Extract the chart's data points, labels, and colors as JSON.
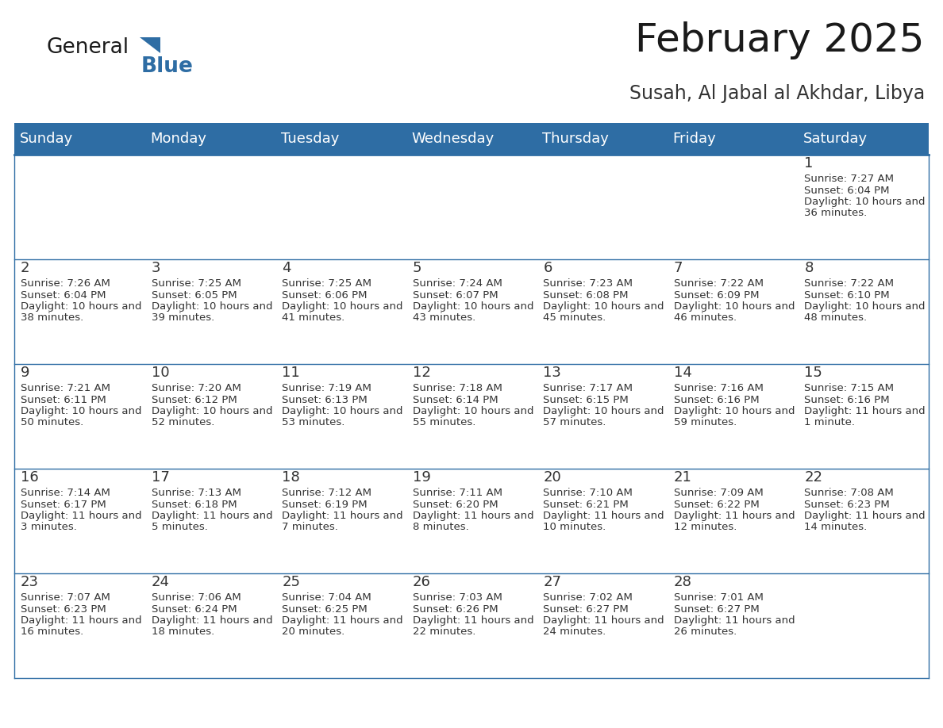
{
  "title": "February 2025",
  "subtitle": "Susah, Al Jabal al Akhdar, Libya",
  "header_bg": "#2E6DA4",
  "header_text_color": "#FFFFFF",
  "cell_bg": "#FFFFFF",
  "cell_border_color": "#2E6DA4",
  "day_names": [
    "Sunday",
    "Monday",
    "Tuesday",
    "Wednesday",
    "Thursday",
    "Friday",
    "Saturday"
  ],
  "title_color": "#1a1a1a",
  "subtitle_color": "#333333",
  "cell_text_color": "#333333",
  "day_num_color": "#333333",
  "days": [
    {
      "date": 1,
      "col": 6,
      "row": 0,
      "sunrise": "7:27 AM",
      "sunset": "6:04 PM",
      "daylight": "10 hours and 36 minutes."
    },
    {
      "date": 2,
      "col": 0,
      "row": 1,
      "sunrise": "7:26 AM",
      "sunset": "6:04 PM",
      "daylight": "10 hours and 38 minutes."
    },
    {
      "date": 3,
      "col": 1,
      "row": 1,
      "sunrise": "7:25 AM",
      "sunset": "6:05 PM",
      "daylight": "10 hours and 39 minutes."
    },
    {
      "date": 4,
      "col": 2,
      "row": 1,
      "sunrise": "7:25 AM",
      "sunset": "6:06 PM",
      "daylight": "10 hours and 41 minutes."
    },
    {
      "date": 5,
      "col": 3,
      "row": 1,
      "sunrise": "7:24 AM",
      "sunset": "6:07 PM",
      "daylight": "10 hours and 43 minutes."
    },
    {
      "date": 6,
      "col": 4,
      "row": 1,
      "sunrise": "7:23 AM",
      "sunset": "6:08 PM",
      "daylight": "10 hours and 45 minutes."
    },
    {
      "date": 7,
      "col": 5,
      "row": 1,
      "sunrise": "7:22 AM",
      "sunset": "6:09 PM",
      "daylight": "10 hours and 46 minutes."
    },
    {
      "date": 8,
      "col": 6,
      "row": 1,
      "sunrise": "7:22 AM",
      "sunset": "6:10 PM",
      "daylight": "10 hours and 48 minutes."
    },
    {
      "date": 9,
      "col": 0,
      "row": 2,
      "sunrise": "7:21 AM",
      "sunset": "6:11 PM",
      "daylight": "10 hours and 50 minutes."
    },
    {
      "date": 10,
      "col": 1,
      "row": 2,
      "sunrise": "7:20 AM",
      "sunset": "6:12 PM",
      "daylight": "10 hours and 52 minutes."
    },
    {
      "date": 11,
      "col": 2,
      "row": 2,
      "sunrise": "7:19 AM",
      "sunset": "6:13 PM",
      "daylight": "10 hours and 53 minutes."
    },
    {
      "date": 12,
      "col": 3,
      "row": 2,
      "sunrise": "7:18 AM",
      "sunset": "6:14 PM",
      "daylight": "10 hours and 55 minutes."
    },
    {
      "date": 13,
      "col": 4,
      "row": 2,
      "sunrise": "7:17 AM",
      "sunset": "6:15 PM",
      "daylight": "10 hours and 57 minutes."
    },
    {
      "date": 14,
      "col": 5,
      "row": 2,
      "sunrise": "7:16 AM",
      "sunset": "6:16 PM",
      "daylight": "10 hours and 59 minutes."
    },
    {
      "date": 15,
      "col": 6,
      "row": 2,
      "sunrise": "7:15 AM",
      "sunset": "6:16 PM",
      "daylight": "11 hours and 1 minute."
    },
    {
      "date": 16,
      "col": 0,
      "row": 3,
      "sunrise": "7:14 AM",
      "sunset": "6:17 PM",
      "daylight": "11 hours and 3 minutes."
    },
    {
      "date": 17,
      "col": 1,
      "row": 3,
      "sunrise": "7:13 AM",
      "sunset": "6:18 PM",
      "daylight": "11 hours and 5 minutes."
    },
    {
      "date": 18,
      "col": 2,
      "row": 3,
      "sunrise": "7:12 AM",
      "sunset": "6:19 PM",
      "daylight": "11 hours and 7 minutes."
    },
    {
      "date": 19,
      "col": 3,
      "row": 3,
      "sunrise": "7:11 AM",
      "sunset": "6:20 PM",
      "daylight": "11 hours and 8 minutes."
    },
    {
      "date": 20,
      "col": 4,
      "row": 3,
      "sunrise": "7:10 AM",
      "sunset": "6:21 PM",
      "daylight": "11 hours and 10 minutes."
    },
    {
      "date": 21,
      "col": 5,
      "row": 3,
      "sunrise": "7:09 AM",
      "sunset": "6:22 PM",
      "daylight": "11 hours and 12 minutes."
    },
    {
      "date": 22,
      "col": 6,
      "row": 3,
      "sunrise": "7:08 AM",
      "sunset": "6:23 PM",
      "daylight": "11 hours and 14 minutes."
    },
    {
      "date": 23,
      "col": 0,
      "row": 4,
      "sunrise": "7:07 AM",
      "sunset": "6:23 PM",
      "daylight": "11 hours and 16 minutes."
    },
    {
      "date": 24,
      "col": 1,
      "row": 4,
      "sunrise": "7:06 AM",
      "sunset": "6:24 PM",
      "daylight": "11 hours and 18 minutes."
    },
    {
      "date": 25,
      "col": 2,
      "row": 4,
      "sunrise": "7:04 AM",
      "sunset": "6:25 PM",
      "daylight": "11 hours and 20 minutes."
    },
    {
      "date": 26,
      "col": 3,
      "row": 4,
      "sunrise": "7:03 AM",
      "sunset": "6:26 PM",
      "daylight": "11 hours and 22 minutes."
    },
    {
      "date": 27,
      "col": 4,
      "row": 4,
      "sunrise": "7:02 AM",
      "sunset": "6:27 PM",
      "daylight": "11 hours and 24 minutes."
    },
    {
      "date": 28,
      "col": 5,
      "row": 4,
      "sunrise": "7:01 AM",
      "sunset": "6:27 PM",
      "daylight": "11 hours and 26 minutes."
    }
  ],
  "n_rows": 5,
  "n_cols": 7,
  "logo_text_general": "General",
  "logo_text_blue": "Blue",
  "logo_color_general": "#1a1a1a",
  "logo_color_blue": "#2E6DA4",
  "logo_triangle_color": "#2E6DA4"
}
